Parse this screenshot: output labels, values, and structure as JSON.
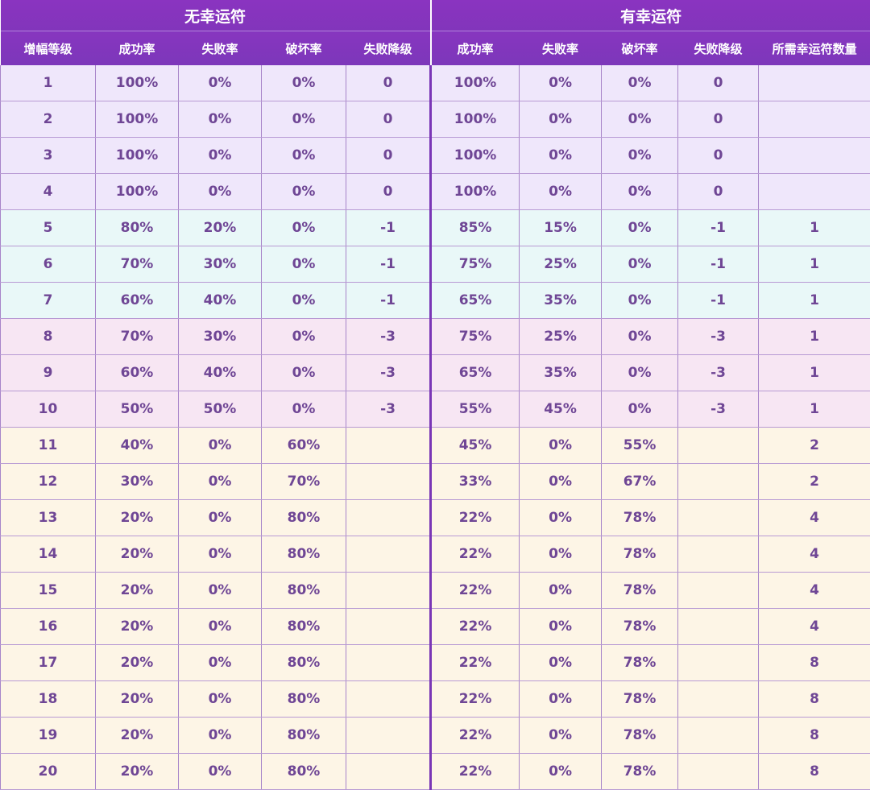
{
  "header": {
    "group_left": "无幸运符",
    "group_right": "有幸运符",
    "columns": [
      "增幅等级",
      "成功率",
      "失败率",
      "破坏率",
      "失败降级",
      "成功率",
      "失败率",
      "破坏率",
      "失败降级",
      "所需幸运符数量"
    ]
  },
  "row_colors": {
    "lav": "#efe7fb",
    "cyan": "#e9f8f8",
    "pink": "#f7e6f3",
    "cream": "#fdf5e6",
    "header_purple": "#8235bb"
  },
  "rows": [
    {
      "band": "lav",
      "cells": [
        "1",
        "100%",
        "0%",
        "0%",
        "0",
        "100%",
        "0%",
        "0%",
        "0",
        ""
      ]
    },
    {
      "band": "lav",
      "cells": [
        "2",
        "100%",
        "0%",
        "0%",
        "0",
        "100%",
        "0%",
        "0%",
        "0",
        ""
      ]
    },
    {
      "band": "lav",
      "cells": [
        "3",
        "100%",
        "0%",
        "0%",
        "0",
        "100%",
        "0%",
        "0%",
        "0",
        ""
      ]
    },
    {
      "band": "lav",
      "cells": [
        "4",
        "100%",
        "0%",
        "0%",
        "0",
        "100%",
        "0%",
        "0%",
        "0",
        ""
      ]
    },
    {
      "band": "cyan",
      "cells": [
        "5",
        "80%",
        "20%",
        "0%",
        "-1",
        "85%",
        "15%",
        "0%",
        "-1",
        "1"
      ]
    },
    {
      "band": "cyan",
      "cells": [
        "6",
        "70%",
        "30%",
        "0%",
        "-1",
        "75%",
        "25%",
        "0%",
        "-1",
        "1"
      ]
    },
    {
      "band": "cyan",
      "cells": [
        "7",
        "60%",
        "40%",
        "0%",
        "-1",
        "65%",
        "35%",
        "0%",
        "-1",
        "1"
      ]
    },
    {
      "band": "pink",
      "cells": [
        "8",
        "70%",
        "30%",
        "0%",
        "-3",
        "75%",
        "25%",
        "0%",
        "-3",
        "1"
      ]
    },
    {
      "band": "pink",
      "cells": [
        "9",
        "60%",
        "40%",
        "0%",
        "-3",
        "65%",
        "35%",
        "0%",
        "-3",
        "1"
      ]
    },
    {
      "band": "pink",
      "cells": [
        "10",
        "50%",
        "50%",
        "0%",
        "-3",
        "55%",
        "45%",
        "0%",
        "-3",
        "1"
      ]
    },
    {
      "band": "cream",
      "cells": [
        "11",
        "40%",
        "0%",
        "60%",
        "",
        "45%",
        "0%",
        "55%",
        "",
        "2"
      ]
    },
    {
      "band": "cream",
      "cells": [
        "12",
        "30%",
        "0%",
        "70%",
        "",
        "33%",
        "0%",
        "67%",
        "",
        "2"
      ]
    },
    {
      "band": "cream",
      "cells": [
        "13",
        "20%",
        "0%",
        "80%",
        "",
        "22%",
        "0%",
        "78%",
        "",
        "4"
      ]
    },
    {
      "band": "cream",
      "cells": [
        "14",
        "20%",
        "0%",
        "80%",
        "",
        "22%",
        "0%",
        "78%",
        "",
        "4"
      ]
    },
    {
      "band": "cream",
      "cells": [
        "15",
        "20%",
        "0%",
        "80%",
        "",
        "22%",
        "0%",
        "78%",
        "",
        "4"
      ]
    },
    {
      "band": "cream",
      "cells": [
        "16",
        "20%",
        "0%",
        "80%",
        "",
        "22%",
        "0%",
        "78%",
        "",
        "4"
      ]
    },
    {
      "band": "cream",
      "cells": [
        "17",
        "20%",
        "0%",
        "80%",
        "",
        "22%",
        "0%",
        "78%",
        "",
        "8"
      ]
    },
    {
      "band": "cream",
      "cells": [
        "18",
        "20%",
        "0%",
        "80%",
        "",
        "22%",
        "0%",
        "78%",
        "",
        "8"
      ]
    },
    {
      "band": "cream",
      "cells": [
        "19",
        "20%",
        "0%",
        "80%",
        "",
        "22%",
        "0%",
        "78%",
        "",
        "8"
      ]
    },
    {
      "band": "cream",
      "cells": [
        "20",
        "20%",
        "0%",
        "80%",
        "",
        "22%",
        "0%",
        "78%",
        "",
        "8"
      ]
    }
  ]
}
